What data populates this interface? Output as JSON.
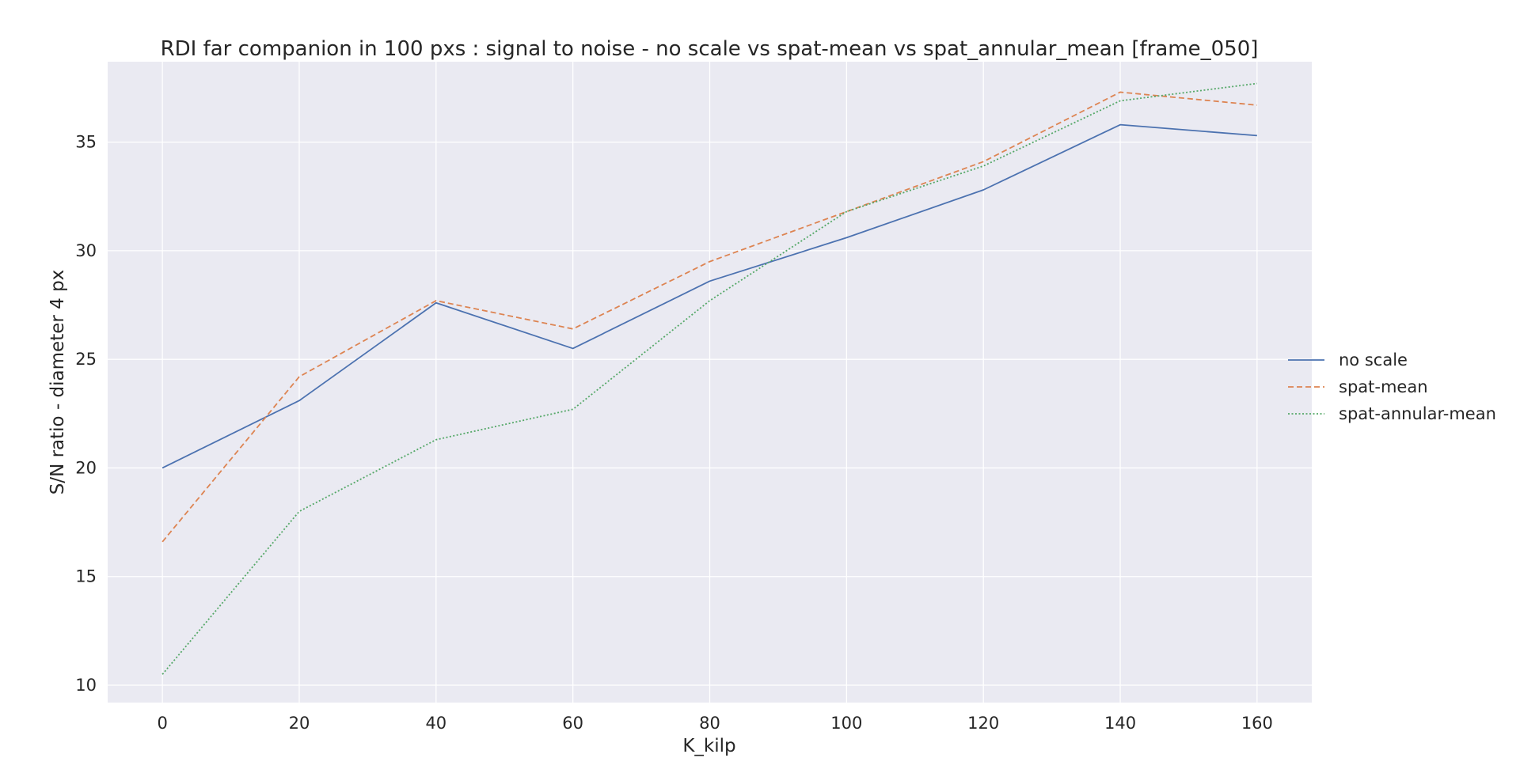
{
  "chart_data": {
    "type": "line",
    "title": "RDI far companion in 100 pxs : signal to noise - no scale vs spat-mean vs spat_annular_mean [frame_050]",
    "xlabel": "K_kilp",
    "ylabel": "S/N ratio - diameter 4 px",
    "x": [
      0,
      20,
      40,
      60,
      80,
      100,
      120,
      140,
      160
    ],
    "xlim": [
      -8,
      168
    ],
    "ylim": [
      9.2,
      38.7
    ],
    "xticks": [
      0,
      20,
      40,
      60,
      80,
      100,
      120,
      140,
      160
    ],
    "yticks": [
      10,
      15,
      20,
      25,
      30,
      35
    ],
    "grid": true,
    "legend_position": "right",
    "series": [
      {
        "name": "no scale",
        "color": "#4c72b0",
        "style": "solid",
        "values": [
          20.0,
          23.1,
          27.6,
          25.5,
          28.6,
          30.6,
          32.8,
          35.8,
          35.3
        ]
      },
      {
        "name": "spat-mean",
        "color": "#dd8452",
        "style": "dashed",
        "values": [
          16.6,
          24.2,
          27.7,
          26.4,
          29.5,
          31.8,
          34.1,
          37.3,
          36.7
        ]
      },
      {
        "name": "spat-annular-mean",
        "color": "#55a868",
        "style": "dotted",
        "values": [
          10.5,
          18.0,
          21.3,
          22.7,
          27.7,
          31.8,
          33.9,
          36.9,
          37.7
        ]
      }
    ]
  }
}
